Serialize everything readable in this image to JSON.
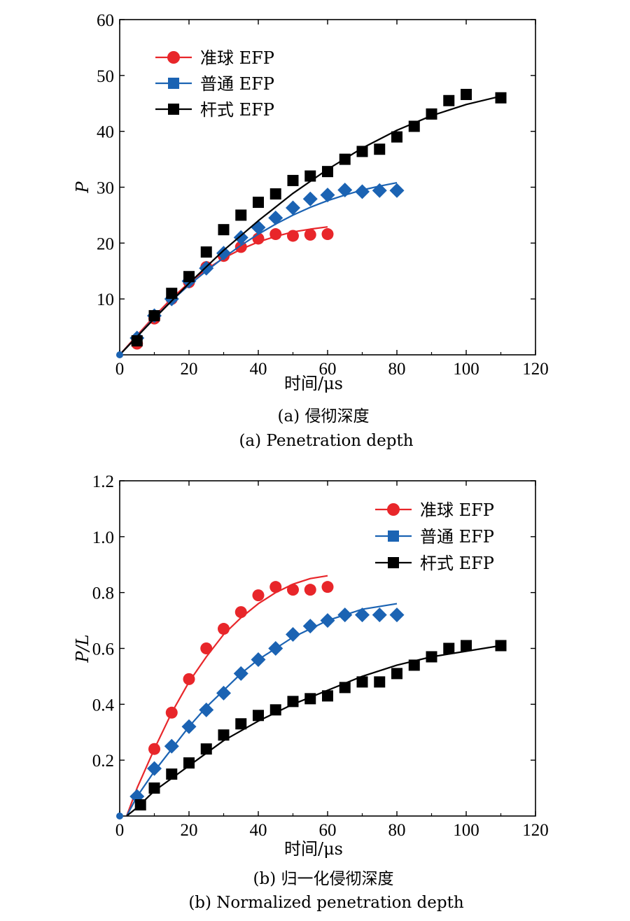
{
  "chart_data": [
    {
      "type": "line",
      "caption_zh": "(a) 侵彻深度",
      "caption_en": "(a) Penetration depth",
      "xlabel": "时间/μs",
      "ylabel": "P",
      "xlim": [
        0,
        120
      ],
      "ylim": [
        0,
        60
      ],
      "xticks": [
        "0",
        "20",
        "40",
        "60",
        "80",
        "100",
        "120"
      ],
      "yticks": [
        "10",
        "20",
        "30",
        "40",
        "50",
        "60"
      ],
      "legend_position": "top-left",
      "series": [
        {
          "name": "准球 EFP",
          "color": "#e8262a",
          "marker": "circle",
          "x": [
            5,
            10,
            15,
            20,
            25,
            30,
            35,
            40,
            45,
            50,
            55,
            60
          ],
          "y": [
            2,
            6.5,
            10,
            13,
            15.7,
            17.7,
            19.3,
            20.8,
            21.6,
            21.3,
            21.5,
            21.6
          ],
          "fit": {
            "x": [
              0,
              5,
              10,
              15,
              20,
              25,
              30,
              35,
              40,
              45,
              50,
              55,
              60
            ],
            "y": [
              0,
              3.5,
              6.9,
              10.1,
              12.9,
              15.3,
              17.3,
              18.9,
              20.2,
              21.2,
              22,
              22.5,
              22.9
            ]
          }
        },
        {
          "name": "普通 EFP",
          "color": "#1b63b3",
          "marker": "diamond",
          "x": [
            5,
            10,
            15,
            20,
            25,
            30,
            35,
            40,
            45,
            50,
            55,
            60,
            65,
            70,
            75,
            80
          ],
          "y": [
            3,
            7,
            10,
            13.2,
            15.5,
            18.2,
            21,
            22.8,
            24.5,
            26.3,
            27.9,
            28.6,
            29.5,
            29.2,
            29.4,
            29.4
          ],
          "fit": {
            "x": [
              0,
              5,
              10,
              15,
              20,
              25,
              30,
              35,
              40,
              45,
              50,
              55,
              60,
              65,
              70,
              75,
              80
            ],
            "y": [
              0,
              3.3,
              6.6,
              9.7,
              12.5,
              15,
              17.4,
              19.6,
              21.6,
              23.4,
              25,
              26.4,
              27.6,
              28.6,
              29.5,
              30.2,
              30.8
            ]
          }
        },
        {
          "name": "杆式 EFP",
          "color": "#000000",
          "marker": "square",
          "x": [
            5,
            10,
            15,
            20,
            25,
            30,
            35,
            40,
            45,
            50,
            55,
            60,
            65,
            70,
            75,
            80,
            85,
            90,
            95,
            100,
            110
          ],
          "y": [
            2.5,
            7,
            11,
            14,
            18.4,
            22.4,
            25,
            27.3,
            28.8,
            31.2,
            32,
            32.8,
            35,
            36.4,
            36.8,
            39,
            40.9,
            43.1,
            45.5,
            46.6,
            46
          ],
          "fit": {
            "x": [
              0,
              10,
              20,
              30,
              40,
              50,
              60,
              70,
              80,
              90,
              100,
              110
            ],
            "y": [
              0,
              6.5,
              12.8,
              18.7,
              24,
              28.9,
              33.2,
              37,
              40.2,
              42.8,
              44.8,
              46.3
            ]
          }
        }
      ]
    },
    {
      "type": "line",
      "caption_zh": "(b) 归一化侵彻深度",
      "caption_en": "(b) Normalized penetration depth",
      "xlabel": "时间/μs",
      "ylabel": "P/L",
      "xlim": [
        0,
        120
      ],
      "ylim": [
        0,
        1.2
      ],
      "xticks": [
        "0",
        "20",
        "40",
        "60",
        "80",
        "100",
        "120"
      ],
      "yticks": [
        "0.2",
        "0.4",
        "0.6",
        "0.8",
        "1.0",
        "1.2"
      ],
      "legend_position": "top-right",
      "series": [
        {
          "name": "准球 EFP",
          "color": "#e8262a",
          "marker": "circle",
          "x": [
            10,
            15,
            20,
            25,
            30,
            35,
            40,
            45,
            50,
            55,
            60
          ],
          "y": [
            0.24,
            0.37,
            0.49,
            0.6,
            0.67,
            0.73,
            0.79,
            0.82,
            0.81,
            0.81,
            0.82
          ],
          "fit": {
            "x": [
              2,
              5,
              10,
              15,
              20,
              25,
              30,
              35,
              40,
              45,
              50,
              55,
              60
            ],
            "y": [
              0,
              0.1,
              0.24,
              0.37,
              0.48,
              0.57,
              0.65,
              0.71,
              0.76,
              0.8,
              0.83,
              0.85,
              0.86
            ]
          }
        },
        {
          "name": "普通 EFP",
          "color": "#1b63b3",
          "marker": "diamond",
          "x": [
            5,
            10,
            15,
            20,
            25,
            30,
            35,
            40,
            45,
            50,
            55,
            60,
            65,
            70,
            75,
            80
          ],
          "y": [
            0.07,
            0.17,
            0.25,
            0.32,
            0.38,
            0.44,
            0.51,
            0.56,
            0.6,
            0.65,
            0.68,
            0.7,
            0.72,
            0.72,
            0.72,
            0.72
          ],
          "fit": {
            "x": [
              2,
              5,
              10,
              15,
              20,
              25,
              30,
              35,
              40,
              45,
              50,
              55,
              60,
              65,
              70,
              75,
              80
            ],
            "y": [
              0,
              0.07,
              0.16,
              0.24,
              0.32,
              0.39,
              0.45,
              0.51,
              0.56,
              0.6,
              0.64,
              0.67,
              0.7,
              0.72,
              0.74,
              0.75,
              0.76
            ]
          }
        },
        {
          "name": "杆式 EFP",
          "color": "#000000",
          "marker": "square",
          "x": [
            6,
            10,
            15,
            20,
            25,
            30,
            35,
            40,
            45,
            50,
            55,
            60,
            65,
            70,
            75,
            80,
            85,
            90,
            95,
            100,
            110
          ],
          "y": [
            0.04,
            0.1,
            0.15,
            0.19,
            0.24,
            0.29,
            0.33,
            0.36,
            0.38,
            0.41,
            0.42,
            0.43,
            0.46,
            0.48,
            0.48,
            0.51,
            0.54,
            0.57,
            0.6,
            0.61,
            0.61
          ],
          "fit": {
            "x": [
              2,
              5,
              10,
              20,
              30,
              40,
              50,
              60,
              70,
              80,
              90,
              100,
              110
            ],
            "y": [
              0,
              0.03,
              0.09,
              0.18,
              0.27,
              0.34,
              0.4,
              0.45,
              0.5,
              0.54,
              0.57,
              0.59,
              0.61
            ]
          }
        }
      ]
    }
  ]
}
